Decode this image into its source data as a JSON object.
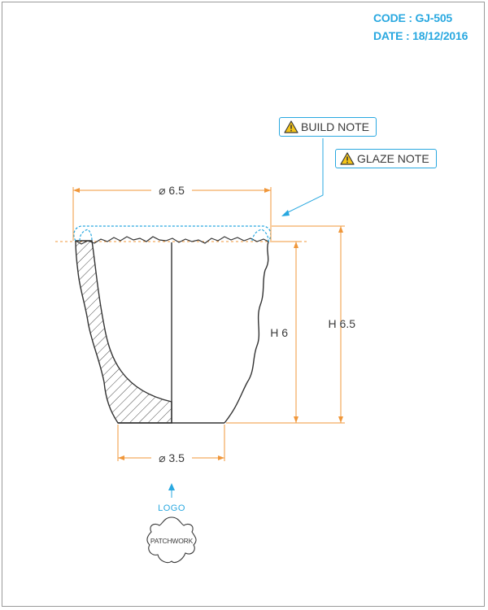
{
  "header": {
    "code_text": "CODE : GJ-505",
    "date_text": "DATE : 18/12/2016"
  },
  "notes": {
    "build": {
      "label": "BUILD NOTE",
      "icon": "warning-icon"
    },
    "glaze": {
      "label": "GLAZE NOTE",
      "icon": "warning-icon"
    }
  },
  "dimensions": {
    "top_diameter": "⌀ 6.5",
    "base_diameter": "⌀ 3.5",
    "height_inner": "H 6",
    "height_total": "H 6.5"
  },
  "logo": {
    "label": "LOGO",
    "brand": "PATCHWORK"
  },
  "colors": {
    "accent_blue": "#29a8e0",
    "dimension_orange": "#f0973a",
    "outline": "#333333",
    "text_dark": "#3a3a3a"
  }
}
